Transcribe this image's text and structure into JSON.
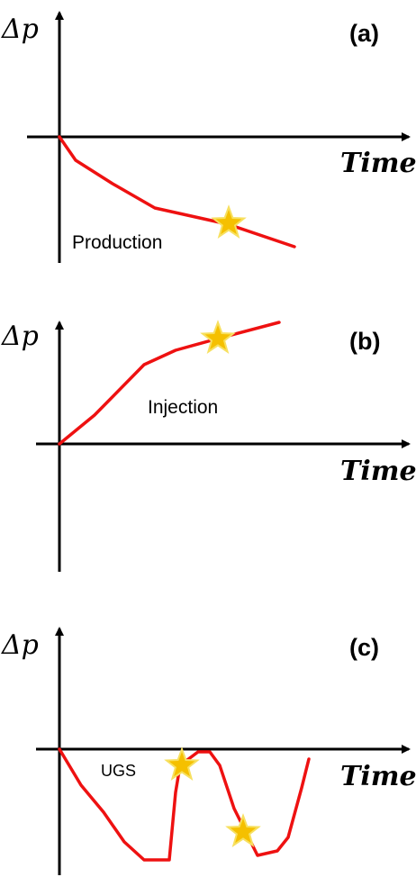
{
  "panels": [
    {
      "tag": "(a)",
      "y_label": "Δp",
      "x_label": "Time",
      "annotation": "Production"
    },
    {
      "tag": "(b)",
      "y_label": "Δp",
      "x_label": "Time",
      "annotation": "Injection"
    },
    {
      "tag": "(c)",
      "y_label": "Δp",
      "x_label": "Time",
      "annotation": "UGS"
    }
  ],
  "colors": {
    "curve": "#ee1111",
    "star": "#f5c000",
    "axis": "#000000"
  }
}
